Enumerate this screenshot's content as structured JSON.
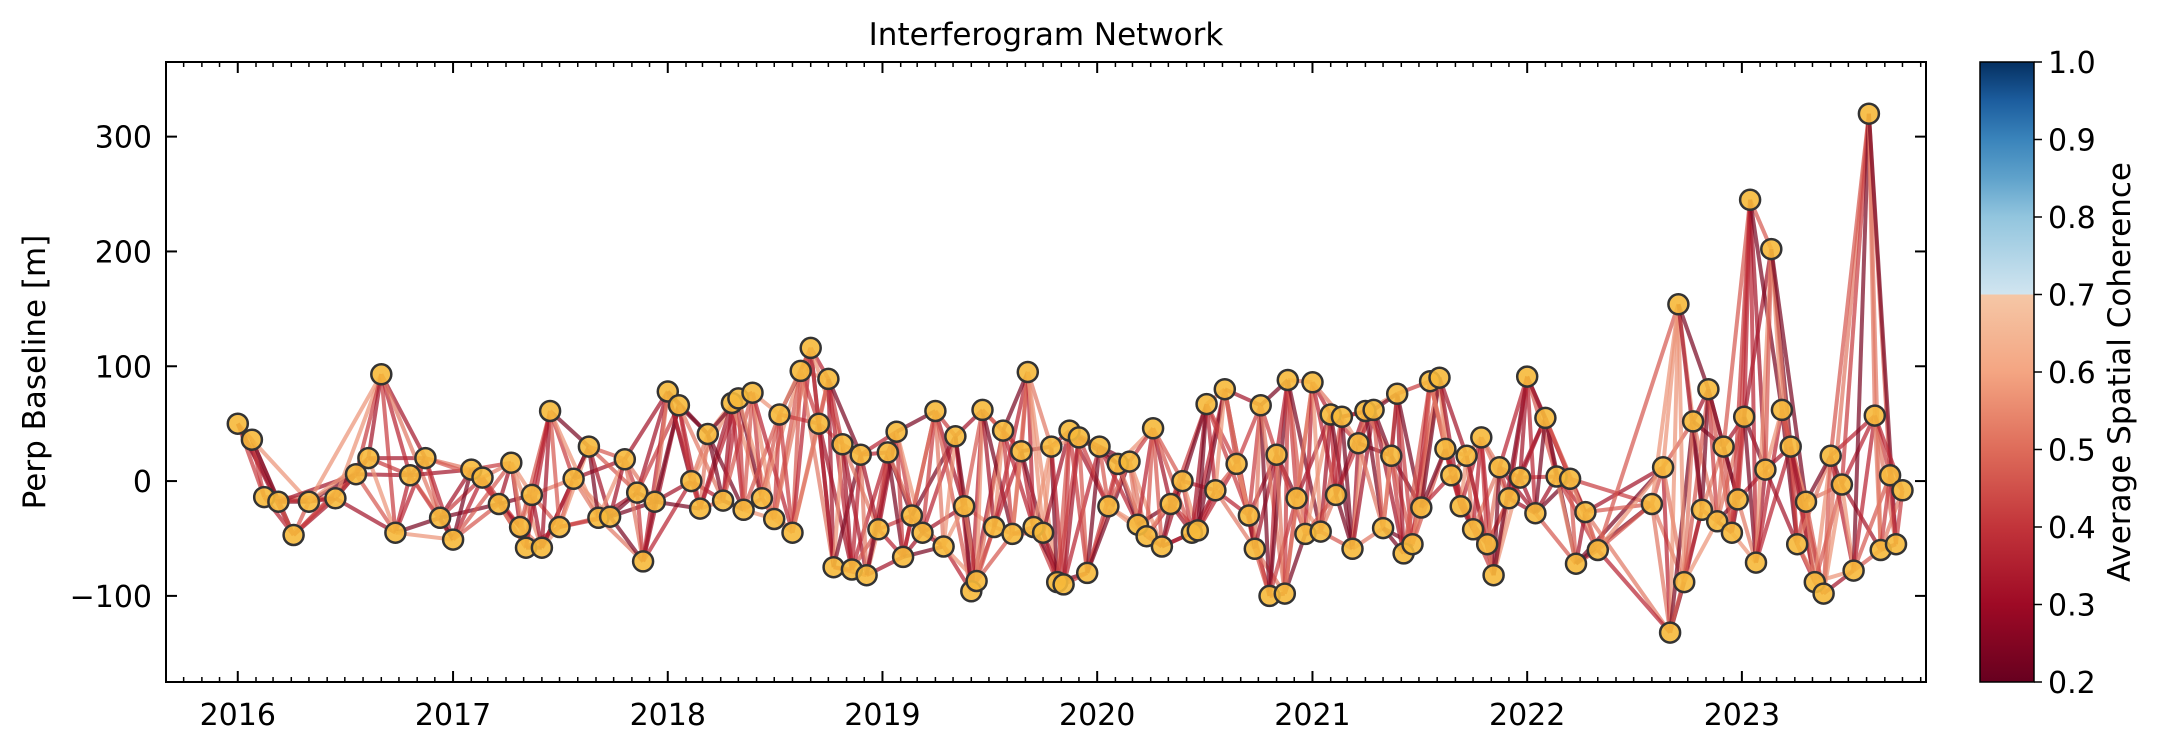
{
  "chart_data": {
    "type": "network",
    "title": "Interferogram Network",
    "xlabel": "",
    "ylabel": "Perp Baseline [m]",
    "x_is_date": true,
    "xlim": [
      "2015-09-01",
      "2023-11-10"
    ],
    "ylim": [
      -175,
      365
    ],
    "x_ticks": [
      "2016",
      "2017",
      "2018",
      "2019",
      "2020",
      "2021",
      "2022",
      "2023"
    ],
    "y_ticks": [
      "300",
      "200",
      "100",
      "0",
      "−100"
    ],
    "y_tick_values": [
      300,
      200,
      100,
      0,
      -100
    ],
    "grid": false,
    "colorbar": {
      "label": "Average Spatial Coherence",
      "range": [
        0.2,
        1.0
      ],
      "ticks": [
        "1.0",
        "0.9",
        "0.8",
        "0.7",
        "0.6",
        "0.5",
        "0.4",
        "0.3",
        "0.2"
      ],
      "tick_values": [
        1.0,
        0.9,
        0.8,
        0.7,
        0.6,
        0.5,
        0.4,
        0.3,
        0.2
      ],
      "cmap": "RdBu",
      "masked_above": 0.7,
      "colors": [
        "#67001f",
        "#b2182b",
        "#d6604d",
        "#f4a582",
        "#d1e5f0",
        "#92c5de",
        "#4393c3",
        "#2166ac",
        "#053061"
      ]
    },
    "node_color": "#f6b93b",
    "node_edge_color": "#333333",
    "acquisitions": [
      {
        "date": "2016-01-01",
        "bperp": 50
      },
      {
        "date": "2016-01-25",
        "bperp": 36
      },
      {
        "date": "2016-02-15",
        "bperp": -14
      },
      {
        "date": "2016-03-10",
        "bperp": -18
      },
      {
        "date": "2016-04-05",
        "bperp": -47
      },
      {
        "date": "2016-05-01",
        "bperp": -18
      },
      {
        "date": "2016-06-15",
        "bperp": -15
      },
      {
        "date": "2016-07-20",
        "bperp": 6
      },
      {
        "date": "2016-08-10",
        "bperp": 20
      },
      {
        "date": "2016-09-01",
        "bperp": 93
      },
      {
        "date": "2016-09-25",
        "bperp": -45
      },
      {
        "date": "2016-10-20",
        "bperp": 5
      },
      {
        "date": "2016-11-15",
        "bperp": 20
      },
      {
        "date": "2016-12-10",
        "bperp": -32
      },
      {
        "date": "2017-01-01",
        "bperp": -51
      },
      {
        "date": "2017-02-01",
        "bperp": 10
      },
      {
        "date": "2017-02-20",
        "bperp": 3
      },
      {
        "date": "2017-03-20",
        "bperp": -20
      },
      {
        "date": "2017-04-10",
        "bperp": 16
      },
      {
        "date": "2017-04-25",
        "bperp": -40
      },
      {
        "date": "2017-05-05",
        "bperp": -58
      },
      {
        "date": "2017-05-15",
        "bperp": -12
      },
      {
        "date": "2017-06-01",
        "bperp": -58
      },
      {
        "date": "2017-06-15",
        "bperp": 61
      },
      {
        "date": "2017-07-01",
        "bperp": -40
      },
      {
        "date": "2017-07-25",
        "bperp": 2
      },
      {
        "date": "2017-08-20",
        "bperp": 30
      },
      {
        "date": "2017-09-05",
        "bperp": -32
      },
      {
        "date": "2017-09-25",
        "bperp": -31
      },
      {
        "date": "2017-10-20",
        "bperp": 19
      },
      {
        "date": "2017-11-10",
        "bperp": -10
      },
      {
        "date": "2017-11-20",
        "bperp": -70
      },
      {
        "date": "2017-12-10",
        "bperp": -18
      },
      {
        "date": "2018-01-01",
        "bperp": 78
      },
      {
        "date": "2018-01-20",
        "bperp": 66
      },
      {
        "date": "2018-02-10",
        "bperp": 0
      },
      {
        "date": "2018-02-25",
        "bperp": -24
      },
      {
        "date": "2018-03-10",
        "bperp": 41
      },
      {
        "date": "2018-04-05",
        "bperp": -17
      },
      {
        "date": "2018-04-20",
        "bperp": 68
      },
      {
        "date": "2018-05-01",
        "bperp": 72
      },
      {
        "date": "2018-05-10",
        "bperp": -25
      },
      {
        "date": "2018-05-25",
        "bperp": 77
      },
      {
        "date": "2018-06-10",
        "bperp": -15
      },
      {
        "date": "2018-07-01",
        "bperp": -33
      },
      {
        "date": "2018-07-10",
        "bperp": 58
      },
      {
        "date": "2018-08-01",
        "bperp": -45
      },
      {
        "date": "2018-08-15",
        "bperp": 96
      },
      {
        "date": "2018-09-01",
        "bperp": 116
      },
      {
        "date": "2018-09-15",
        "bperp": 50
      },
      {
        "date": "2018-10-01",
        "bperp": 89
      },
      {
        "date": "2018-10-10",
        "bperp": -75
      },
      {
        "date": "2018-10-25",
        "bperp": 32
      },
      {
        "date": "2018-11-10",
        "bperp": -77
      },
      {
        "date": "2018-11-25",
        "bperp": 23
      },
      {
        "date": "2018-12-05",
        "bperp": -82
      },
      {
        "date": "2018-12-25",
        "bperp": -42
      },
      {
        "date": "2019-01-10",
        "bperp": 25
      },
      {
        "date": "2019-01-25",
        "bperp": 43
      },
      {
        "date": "2019-02-05",
        "bperp": -66
      },
      {
        "date": "2019-02-20",
        "bperp": -30
      },
      {
        "date": "2019-03-10",
        "bperp": -45
      },
      {
        "date": "2019-04-01",
        "bperp": 61
      },
      {
        "date": "2019-04-15",
        "bperp": -57
      },
      {
        "date": "2019-05-05",
        "bperp": 39
      },
      {
        "date": "2019-05-20",
        "bperp": -22
      },
      {
        "date": "2019-06-01",
        "bperp": -96
      },
      {
        "date": "2019-06-10",
        "bperp": -87
      },
      {
        "date": "2019-06-20",
        "bperp": 62
      },
      {
        "date": "2019-07-10",
        "bperp": -40
      },
      {
        "date": "2019-07-25",
        "bperp": 44
      },
      {
        "date": "2019-08-10",
        "bperp": -46
      },
      {
        "date": "2019-08-25",
        "bperp": 26
      },
      {
        "date": "2019-09-05",
        "bperp": 95
      },
      {
        "date": "2019-09-15",
        "bperp": -40
      },
      {
        "date": "2019-10-01",
        "bperp": -45
      },
      {
        "date": "2019-10-15",
        "bperp": 30
      },
      {
        "date": "2019-10-25",
        "bperp": -88
      },
      {
        "date": "2019-11-05",
        "bperp": -90
      },
      {
        "date": "2019-11-15",
        "bperp": 44
      },
      {
        "date": "2019-12-01",
        "bperp": 38
      },
      {
        "date": "2019-12-15",
        "bperp": -80
      },
      {
        "date": "2020-01-05",
        "bperp": 30
      },
      {
        "date": "2020-01-20",
        "bperp": -22
      },
      {
        "date": "2020-02-05",
        "bperp": 15
      },
      {
        "date": "2020-02-25",
        "bperp": 17
      },
      {
        "date": "2020-03-10",
        "bperp": -38
      },
      {
        "date": "2020-03-25",
        "bperp": -48
      },
      {
        "date": "2020-04-05",
        "bperp": 46
      },
      {
        "date": "2020-04-20",
        "bperp": -57
      },
      {
        "date": "2020-05-05",
        "bperp": -20
      },
      {
        "date": "2020-05-25",
        "bperp": 0
      },
      {
        "date": "2020-06-10",
        "bperp": -45
      },
      {
        "date": "2020-06-20",
        "bperp": -43
      },
      {
        "date": "2020-07-05",
        "bperp": 67
      },
      {
        "date": "2020-07-20",
        "bperp": -8
      },
      {
        "date": "2020-08-05",
        "bperp": 80
      },
      {
        "date": "2020-08-25",
        "bperp": 15
      },
      {
        "date": "2020-09-15",
        "bperp": -30
      },
      {
        "date": "2020-09-25",
        "bperp": -59
      },
      {
        "date": "2020-10-05",
        "bperp": 66
      },
      {
        "date": "2020-10-20",
        "bperp": -100
      },
      {
        "date": "2020-11-01",
        "bperp": 23
      },
      {
        "date": "2020-11-15",
        "bperp": -98
      },
      {
        "date": "2020-11-20",
        "bperp": 88
      },
      {
        "date": "2020-12-05",
        "bperp": -15
      },
      {
        "date": "2020-12-20",
        "bperp": -46
      },
      {
        "date": "2021-01-01",
        "bperp": 86
      },
      {
        "date": "2021-01-15",
        "bperp": -44
      },
      {
        "date": "2021-02-01",
        "bperp": 58
      },
      {
        "date": "2021-02-10",
        "bperp": -12
      },
      {
        "date": "2021-02-20",
        "bperp": 56
      },
      {
        "date": "2021-03-10",
        "bperp": -59
      },
      {
        "date": "2021-03-20",
        "bperp": 33
      },
      {
        "date": "2021-04-01",
        "bperp": 61
      },
      {
        "date": "2021-04-15",
        "bperp": 62
      },
      {
        "date": "2021-05-01",
        "bperp": -41
      },
      {
        "date": "2021-05-15",
        "bperp": 22
      },
      {
        "date": "2021-05-25",
        "bperp": 76
      },
      {
        "date": "2021-06-05",
        "bperp": -63
      },
      {
        "date": "2021-06-20",
        "bperp": -55
      },
      {
        "date": "2021-07-05",
        "bperp": -23
      },
      {
        "date": "2021-07-20",
        "bperp": 87
      },
      {
        "date": "2021-08-05",
        "bperp": 90
      },
      {
        "date": "2021-08-15",
        "bperp": 28
      },
      {
        "date": "2021-08-25",
        "bperp": 5
      },
      {
        "date": "2021-09-10",
        "bperp": -22
      },
      {
        "date": "2021-09-20",
        "bperp": 22
      },
      {
        "date": "2021-10-01",
        "bperp": -42
      },
      {
        "date": "2021-10-15",
        "bperp": 38
      },
      {
        "date": "2021-10-25",
        "bperp": -55
      },
      {
        "date": "2021-11-05",
        "bperp": -82
      },
      {
        "date": "2021-11-15",
        "bperp": 12
      },
      {
        "date": "2021-12-01",
        "bperp": -15
      },
      {
        "date": "2021-12-20",
        "bperp": 3
      },
      {
        "date": "2022-01-01",
        "bperp": 91
      },
      {
        "date": "2022-01-15",
        "bperp": -28
      },
      {
        "date": "2022-02-01",
        "bperp": 55
      },
      {
        "date": "2022-02-20",
        "bperp": 4
      },
      {
        "date": "2022-03-15",
        "bperp": 2
      },
      {
        "date": "2022-03-25",
        "bperp": -72
      },
      {
        "date": "2022-04-10",
        "bperp": -27
      },
      {
        "date": "2022-05-01",
        "bperp": -60
      },
      {
        "date": "2022-08-01",
        "bperp": -20
      },
      {
        "date": "2022-08-20",
        "bperp": 12
      },
      {
        "date": "2022-09-01",
        "bperp": -132
      },
      {
        "date": "2022-09-15",
        "bperp": 154
      },
      {
        "date": "2022-09-25",
        "bperp": -88
      },
      {
        "date": "2022-10-10",
        "bperp": 52
      },
      {
        "date": "2022-10-25",
        "bperp": -25
      },
      {
        "date": "2022-11-05",
        "bperp": 80
      },
      {
        "date": "2022-11-20",
        "bperp": -35
      },
      {
        "date": "2022-12-01",
        "bperp": 30
      },
      {
        "date": "2022-12-15",
        "bperp": -45
      },
      {
        "date": "2022-12-25",
        "bperp": -16
      },
      {
        "date": "2023-01-05",
        "bperp": 56
      },
      {
        "date": "2023-01-15",
        "bperp": 245
      },
      {
        "date": "2023-01-25",
        "bperp": -71
      },
      {
        "date": "2023-02-10",
        "bperp": 10
      },
      {
        "date": "2023-02-20",
        "bperp": 202
      },
      {
        "date": "2023-03-10",
        "bperp": 62
      },
      {
        "date": "2023-03-25",
        "bperp": 30
      },
      {
        "date": "2023-04-05",
        "bperp": -55
      },
      {
        "date": "2023-04-20",
        "bperp": -18
      },
      {
        "date": "2023-05-05",
        "bperp": -88
      },
      {
        "date": "2023-05-20",
        "bperp": -98
      },
      {
        "date": "2023-06-01",
        "bperp": 22
      },
      {
        "date": "2023-06-20",
        "bperp": -3
      },
      {
        "date": "2023-07-10",
        "bperp": -78
      },
      {
        "date": "2023-08-05",
        "bperp": 320
      },
      {
        "date": "2023-08-15",
        "bperp": 57
      },
      {
        "date": "2023-08-25",
        "bperp": -60
      },
      {
        "date": "2023-09-10",
        "bperp": 5
      },
      {
        "date": "2023-09-20",
        "bperp": -55
      },
      {
        "date": "2023-10-01",
        "bperp": -8
      }
    ],
    "connections": [
      1,
      2,
      3,
      4
    ]
  }
}
